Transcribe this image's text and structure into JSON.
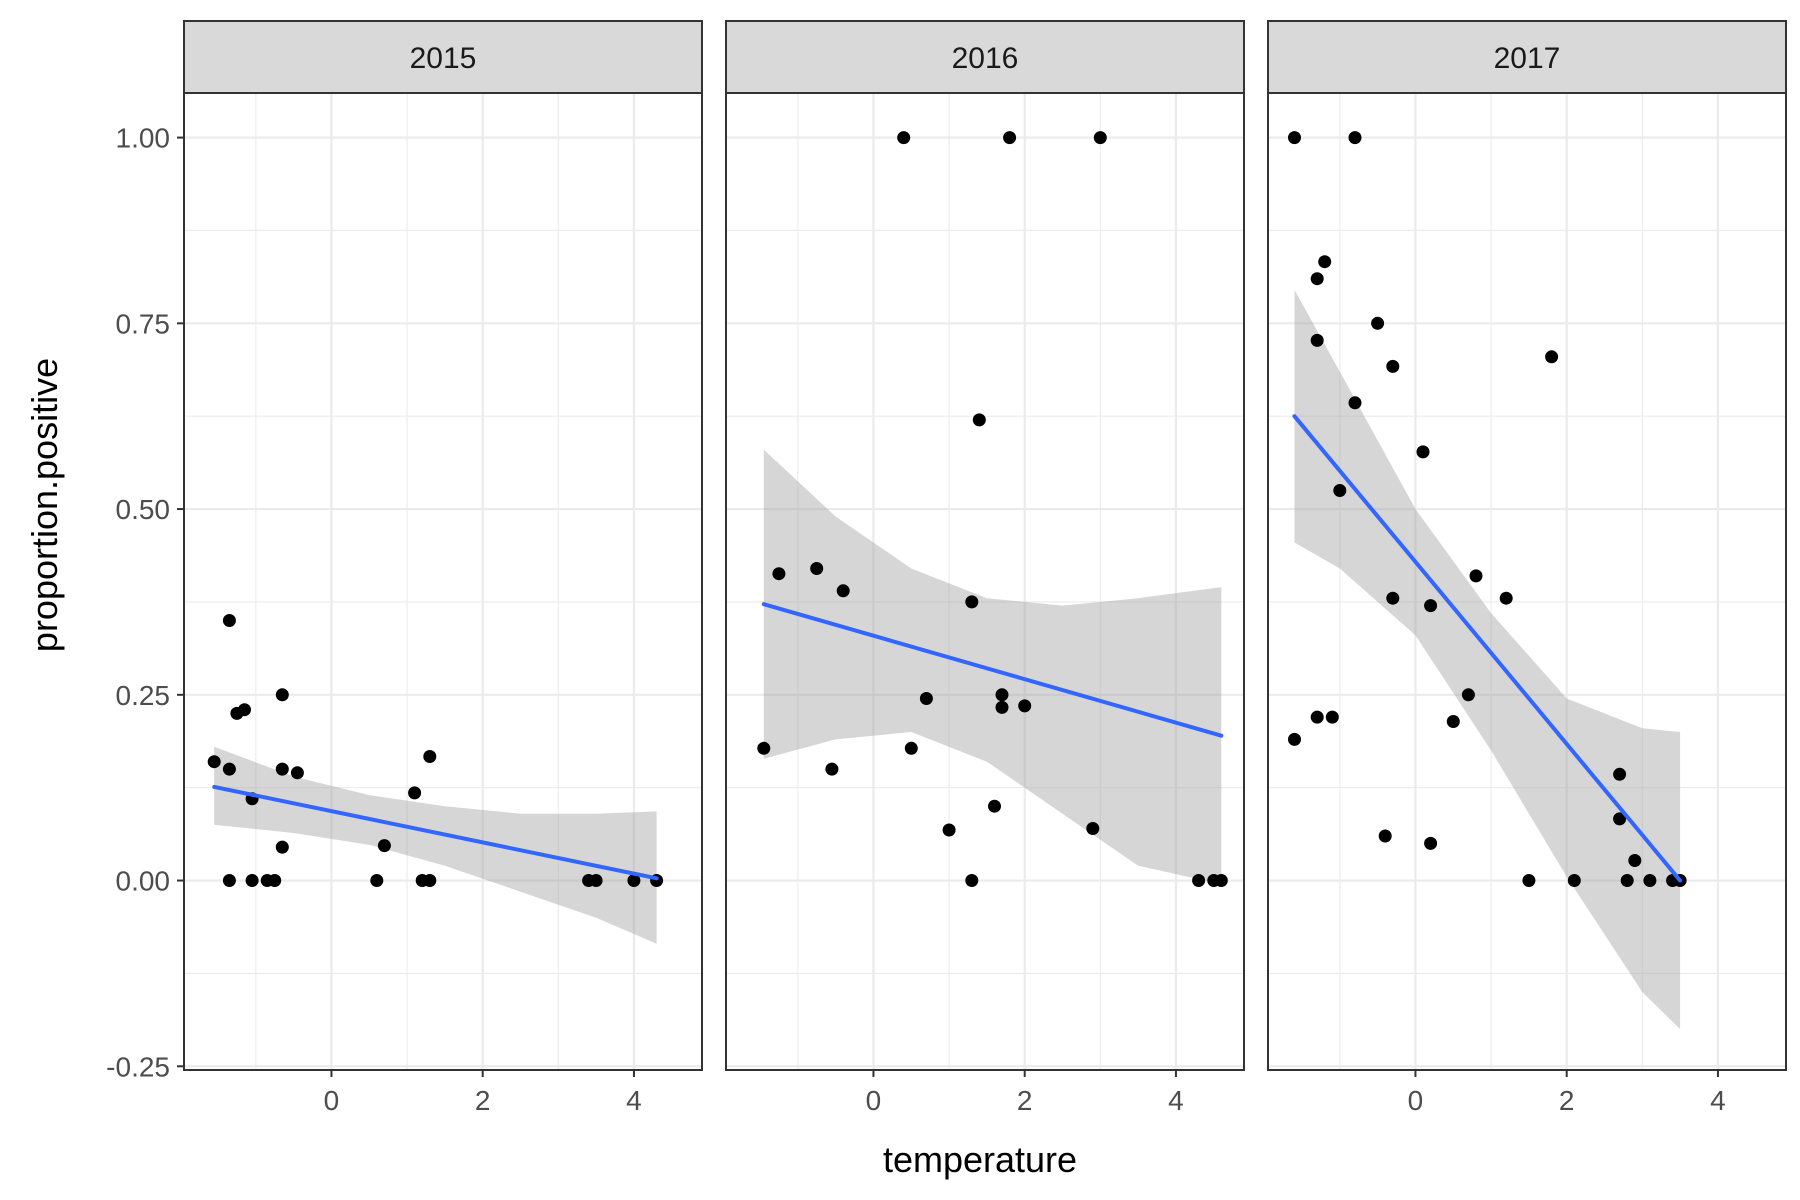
{
  "chart_data": {
    "type": "scatter",
    "xlabel": "temperature",
    "ylabel": "proportion.positive",
    "xlim": [
      -1.95,
      4.9
    ],
    "ylim": [
      -0.255,
      1.06
    ],
    "x_ticks": [
      0,
      2,
      4
    ],
    "x_tick_labels": [
      "0",
      "2",
      "4"
    ],
    "y_ticks": [
      -0.25,
      0,
      0.25,
      0.5,
      0.75,
      1
    ],
    "y_tick_labels": [
      "-0.25",
      "0.00",
      "0.25",
      "0.50",
      "0.75",
      "1.00"
    ],
    "grid": true,
    "colors": {
      "points": "#000000",
      "smooth_line": "#3366ff",
      "confidence_band": "#999999"
    },
    "panels": [
      {
        "label": "2015",
        "points": [
          [
            -1.55,
            0.16
          ],
          [
            -1.35,
            0.35
          ],
          [
            -1.35,
            0.15
          ],
          [
            -1.35,
            0.0
          ],
          [
            -1.25,
            0.225
          ],
          [
            -1.15,
            0.23
          ],
          [
            -1.05,
            0.11
          ],
          [
            -1.05,
            0.0
          ],
          [
            -0.85,
            0.0
          ],
          [
            -0.75,
            0.0
          ],
          [
            -0.65,
            0.25
          ],
          [
            -0.65,
            0.15
          ],
          [
            -0.65,
            0.045
          ],
          [
            -0.45,
            0.145
          ],
          [
            0.6,
            0.0
          ],
          [
            0.7,
            0.047
          ],
          [
            1.1,
            0.118
          ],
          [
            1.2,
            0.0
          ],
          [
            1.3,
            0.167
          ],
          [
            1.3,
            0.0
          ],
          [
            3.4,
            0.0
          ],
          [
            3.5,
            0.0
          ],
          [
            4.0,
            0.0
          ],
          [
            4.3,
            0.0
          ]
        ],
        "trend": {
          "x": [
            -1.55,
            4.3
          ],
          "y": [
            0.126,
            0.003
          ]
        },
        "band": {
          "x": [
            -1.55,
            -0.5,
            0.5,
            1.5,
            2.5,
            3.5,
            4.3
          ],
          "upper": [
            0.18,
            0.14,
            0.115,
            0.1,
            0.09,
            0.09,
            0.093
          ],
          "lower": [
            0.075,
            0.064,
            0.048,
            0.02,
            -0.015,
            -0.05,
            -0.085
          ]
        }
      },
      {
        "label": "2016",
        "points": [
          [
            -1.45,
            0.178
          ],
          [
            -1.25,
            0.413
          ],
          [
            -0.75,
            0.42
          ],
          [
            -0.55,
            0.15
          ],
          [
            -0.4,
            0.39
          ],
          [
            0.4,
            1.0
          ],
          [
            0.5,
            0.178
          ],
          [
            0.7,
            0.245
          ],
          [
            1.0,
            0.068
          ],
          [
            1.3,
            0.375
          ],
          [
            1.3,
            0.0
          ],
          [
            1.4,
            0.62
          ],
          [
            1.6,
            0.1
          ],
          [
            1.7,
            0.25
          ],
          [
            1.7,
            0.233
          ],
          [
            1.8,
            1.0
          ],
          [
            2.0,
            0.235
          ],
          [
            2.9,
            0.07
          ],
          [
            3.0,
            1.0
          ],
          [
            4.3,
            0.0
          ],
          [
            4.5,
            0.0
          ],
          [
            4.6,
            0.0
          ]
        ],
        "trend": {
          "x": [
            -1.45,
            4.6
          ],
          "y": [
            0.372,
            0.195
          ]
        },
        "band": {
          "x": [
            -1.45,
            -0.5,
            0.5,
            1.5,
            2.5,
            3.5,
            4.6
          ],
          "upper": [
            0.58,
            0.49,
            0.42,
            0.38,
            0.37,
            0.38,
            0.395
          ],
          "lower": [
            0.164,
            0.19,
            0.2,
            0.16,
            0.09,
            0.02,
            -0.005
          ]
        }
      },
      {
        "label": "2017",
        "points": [
          [
            -1.6,
            1.0
          ],
          [
            -1.6,
            0.19
          ],
          [
            -1.3,
            0.81
          ],
          [
            -1.3,
            0.727
          ],
          [
            -1.3,
            0.22
          ],
          [
            -1.2,
            0.833
          ],
          [
            -1.1,
            0.22
          ],
          [
            -1.0,
            0.525
          ],
          [
            -0.8,
            1.0
          ],
          [
            -0.8,
            0.643
          ],
          [
            -0.5,
            0.75
          ],
          [
            -0.4,
            0.06
          ],
          [
            -0.3,
            0.692
          ],
          [
            -0.3,
            0.38
          ],
          [
            0.1,
            0.577
          ],
          [
            0.2,
            0.37
          ],
          [
            0.2,
            0.05
          ],
          [
            0.5,
            0.214
          ],
          [
            0.7,
            0.25
          ],
          [
            0.8,
            0.41
          ],
          [
            1.2,
            0.38
          ],
          [
            1.5,
            0.0
          ],
          [
            1.8,
            0.705
          ],
          [
            2.1,
            0.0
          ],
          [
            2.7,
            0.143
          ],
          [
            2.7,
            0.083
          ],
          [
            2.8,
            0.0
          ],
          [
            2.9,
            0.027
          ],
          [
            3.1,
            0.0
          ],
          [
            3.4,
            0.0
          ],
          [
            3.5,
            0.0
          ]
        ],
        "trend": {
          "x": [
            -1.6,
            3.5
          ],
          "y": [
            0.625,
            0.0
          ]
        },
        "band": {
          "x": [
            -1.6,
            -1.0,
            0.0,
            1.0,
            2.0,
            3.0,
            3.5
          ],
          "upper": [
            0.795,
            0.685,
            0.5,
            0.36,
            0.245,
            0.205,
            0.2
          ],
          "lower": [
            0.455,
            0.42,
            0.33,
            0.175,
            0.005,
            -0.15,
            -0.2
          ]
        }
      }
    ]
  }
}
